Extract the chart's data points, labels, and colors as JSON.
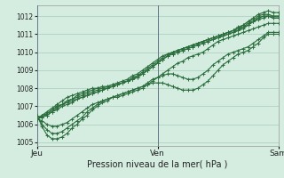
{
  "xlabel": "Pression niveau de la mer( hPa )",
  "bg_color": "#d4ede0",
  "plot_bg_color": "#d4ede0",
  "grid_color": "#a8ccba",
  "line_color": "#2d6e3e",
  "ylim": [
    1004.8,
    1012.6
  ],
  "xlim": [
    0,
    48
  ],
  "yticks": [
    1005,
    1006,
    1007,
    1008,
    1009,
    1010,
    1011,
    1012
  ],
  "xtick_positions": [
    0,
    24,
    48
  ],
  "xtick_labels": [
    "Jeu",
    "Ven",
    "Sam"
  ],
  "vlines": [
    0,
    24,
    48
  ],
  "series": [
    [
      1006.3,
      1006.5,
      1006.7,
      1006.9,
      1007.1,
      1007.3,
      1007.5,
      1007.6,
      1007.7,
      1007.8,
      1007.9,
      1008.0,
      1008.0,
      1008.1,
      1008.1,
      1008.2,
      1008.2,
      1008.3,
      1008.4,
      1008.5,
      1008.6,
      1008.8,
      1009.0,
      1009.2,
      1009.4,
      1009.6,
      1009.8,
      1010.0,
      1010.1,
      1010.2,
      1010.3,
      1010.4,
      1010.5,
      1010.6,
      1010.7,
      1010.8,
      1010.9,
      1011.0,
      1011.1,
      1011.2,
      1011.3,
      1011.5,
      1011.7,
      1011.9,
      1012.1,
      1012.2,
      1012.3,
      1012.2,
      1012.2
    ],
    [
      1006.3,
      1006.4,
      1006.6,
      1006.8,
      1007.0,
      1007.1,
      1007.3,
      1007.4,
      1007.5,
      1007.6,
      1007.7,
      1007.8,
      1007.9,
      1008.0,
      1008.0,
      1008.1,
      1008.2,
      1008.3,
      1008.4,
      1008.6,
      1008.7,
      1008.9,
      1009.1,
      1009.3,
      1009.5,
      1009.7,
      1009.9,
      1010.0,
      1010.1,
      1010.2,
      1010.3,
      1010.4,
      1010.5,
      1010.6,
      1010.7,
      1010.8,
      1010.9,
      1011.0,
      1011.1,
      1011.2,
      1011.4,
      1011.5,
      1011.7,
      1011.8,
      1012.0,
      1012.1,
      1012.1,
      1012.0,
      1012.0
    ],
    [
      1006.3,
      1006.4,
      1006.5,
      1006.7,
      1006.9,
      1007.1,
      1007.2,
      1007.3,
      1007.4,
      1007.5,
      1007.6,
      1007.7,
      1007.8,
      1007.9,
      1008.0,
      1008.1,
      1008.2,
      1008.3,
      1008.4,
      1008.5,
      1008.7,
      1008.8,
      1009.0,
      1009.2,
      1009.4,
      1009.6,
      1009.8,
      1009.9,
      1010.0,
      1010.1,
      1010.2,
      1010.3,
      1010.4,
      1010.5,
      1010.6,
      1010.7,
      1010.8,
      1010.9,
      1011.0,
      1011.1,
      1011.2,
      1011.4,
      1011.5,
      1011.7,
      1011.9,
      1012.0,
      1012.0,
      1011.9,
      1011.9
    ],
    [
      1006.3,
      1006.4,
      1006.5,
      1006.7,
      1006.8,
      1007.0,
      1007.1,
      1007.2,
      1007.4,
      1007.5,
      1007.6,
      1007.7,
      1007.8,
      1007.9,
      1008.0,
      1008.1,
      1008.2,
      1008.3,
      1008.4,
      1008.5,
      1008.6,
      1008.8,
      1009.0,
      1009.2,
      1009.4,
      1009.6,
      1009.8,
      1009.9,
      1010.0,
      1010.1,
      1010.2,
      1010.3,
      1010.4,
      1010.5,
      1010.6,
      1010.7,
      1010.8,
      1010.9,
      1011.0,
      1011.1,
      1011.2,
      1011.3,
      1011.5,
      1011.7,
      1011.8,
      1011.9,
      1012.0,
      1011.9,
      1011.9
    ],
    [
      1006.3,
      1006.5,
      1006.6,
      1006.8,
      1007.0,
      1007.1,
      1007.3,
      1007.4,
      1007.6,
      1007.7,
      1007.8,
      1007.9,
      1008.0,
      1008.0,
      1008.1,
      1008.2,
      1008.3,
      1008.4,
      1008.5,
      1008.7,
      1008.8,
      1009.0,
      1009.2,
      1009.4,
      1009.6,
      1009.8,
      1009.9,
      1010.0,
      1010.1,
      1010.2,
      1010.3,
      1010.4,
      1010.5,
      1010.6,
      1010.7,
      1010.8,
      1010.9,
      1011.0,
      1011.1,
      1011.2,
      1011.3,
      1011.4,
      1011.6,
      1011.7,
      1011.9,
      1012.0,
      1012.0,
      1012.0,
      1012.0
    ],
    [
      1006.3,
      1006.2,
      1006.0,
      1005.9,
      1005.9,
      1006.0,
      1006.1,
      1006.3,
      1006.5,
      1006.7,
      1006.9,
      1007.1,
      1007.2,
      1007.3,
      1007.4,
      1007.5,
      1007.5,
      1007.6,
      1007.7,
      1007.8,
      1007.9,
      1008.0,
      1008.2,
      1008.4,
      1008.6,
      1008.8,
      1009.0,
      1009.2,
      1009.4,
      1009.5,
      1009.7,
      1009.8,
      1009.9,
      1010.0,
      1010.2,
      1010.4,
      1010.6,
      1010.7,
      1010.8,
      1010.9,
      1011.0,
      1011.1,
      1011.2,
      1011.3,
      1011.4,
      1011.5,
      1011.6,
      1011.6,
      1011.6
    ],
    [
      1006.5,
      1006.0,
      1005.7,
      1005.5,
      1005.5,
      1005.6,
      1005.8,
      1006.0,
      1006.2,
      1006.4,
      1006.7,
      1006.9,
      1007.1,
      1007.3,
      1007.4,
      1007.5,
      1007.6,
      1007.7,
      1007.8,
      1007.9,
      1008.0,
      1008.1,
      1008.3,
      1008.5,
      1008.6,
      1008.7,
      1008.8,
      1008.8,
      1008.7,
      1008.6,
      1008.5,
      1008.5,
      1008.6,
      1008.8,
      1009.0,
      1009.3,
      1009.5,
      1009.7,
      1009.9,
      1010.0,
      1010.1,
      1010.2,
      1010.3,
      1010.5,
      1010.7,
      1010.9,
      1011.1,
      1011.1,
      1011.1
    ],
    [
      1006.5,
      1005.9,
      1005.4,
      1005.2,
      1005.2,
      1005.3,
      1005.5,
      1005.8,
      1006.0,
      1006.3,
      1006.5,
      1006.8,
      1007.0,
      1007.2,
      1007.3,
      1007.5,
      1007.6,
      1007.7,
      1007.8,
      1007.9,
      1008.0,
      1008.1,
      1008.2,
      1008.3,
      1008.3,
      1008.3,
      1008.2,
      1008.1,
      1008.0,
      1007.9,
      1007.9,
      1007.9,
      1008.0,
      1008.2,
      1008.4,
      1008.7,
      1009.0,
      1009.3,
      1009.5,
      1009.7,
      1009.9,
      1010.0,
      1010.1,
      1010.3,
      1010.5,
      1010.8,
      1011.0,
      1011.0,
      1011.0
    ]
  ],
  "marker": "+",
  "marker_size": 2.5,
  "line_width": 0.8
}
